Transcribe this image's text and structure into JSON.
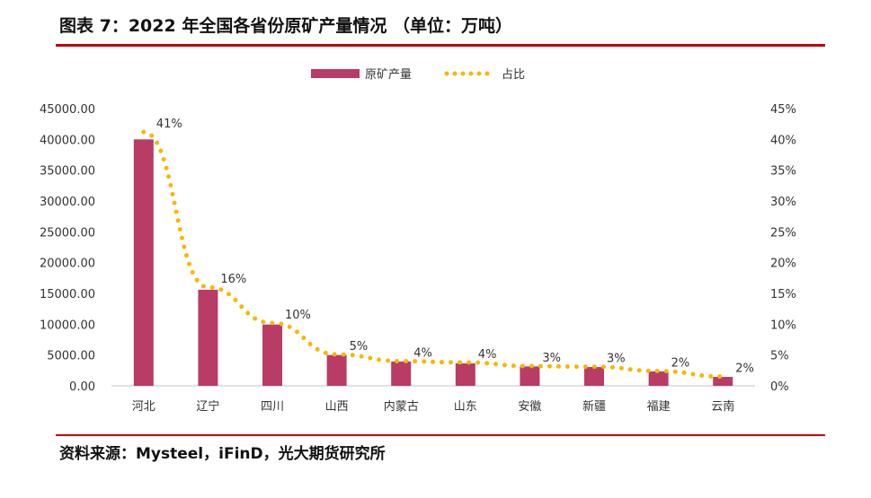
{
  "title": "图表 7：2022 年全国各省份原矿产量情况 （单位：万吨）",
  "source": "资料来源：Mysteel，iFinD，光大期货研究所",
  "colors": {
    "bar": "#b83c65",
    "line": "#f5b800",
    "rule": "#c00000"
  },
  "chart_data": {
    "type": "bar",
    "categories": [
      "河北",
      "辽宁",
      "四川",
      "山西",
      "内蒙古",
      "山东",
      "安徽",
      "新疆",
      "福建",
      "云南"
    ],
    "series": [
      {
        "name": "原矿产量",
        "type": "bar",
        "axis": "left",
        "values": [
          40000,
          15600,
          9950,
          5000,
          3950,
          3650,
          3150,
          3050,
          2350,
          1450
        ]
      },
      {
        "name": "占比",
        "type": "line",
        "axis": "right",
        "style": "dotted",
        "values": [
          41.2,
          16.0,
          10.2,
          5.1,
          4.0,
          3.8,
          3.2,
          3.1,
          2.4,
          1.5
        ],
        "labels": [
          "41%",
          "16%",
          "10%",
          "5%",
          "4%",
          "4%",
          "3%",
          "3%",
          "2%",
          "2%"
        ]
      }
    ],
    "ylim": [
      0,
      45000
    ],
    "y2lim": [
      0,
      45
    ],
    "yticks": [
      "0.00",
      "5000.00",
      "10000.00",
      "15000.00",
      "20000.00",
      "25000.00",
      "30000.00",
      "35000.00",
      "40000.00",
      "45000.00"
    ],
    "y2ticks": [
      "0%",
      "5%",
      "10%",
      "15%",
      "20%",
      "25%",
      "30%",
      "35%",
      "40%",
      "45%"
    ],
    "legend": "top",
    "grid": false
  }
}
